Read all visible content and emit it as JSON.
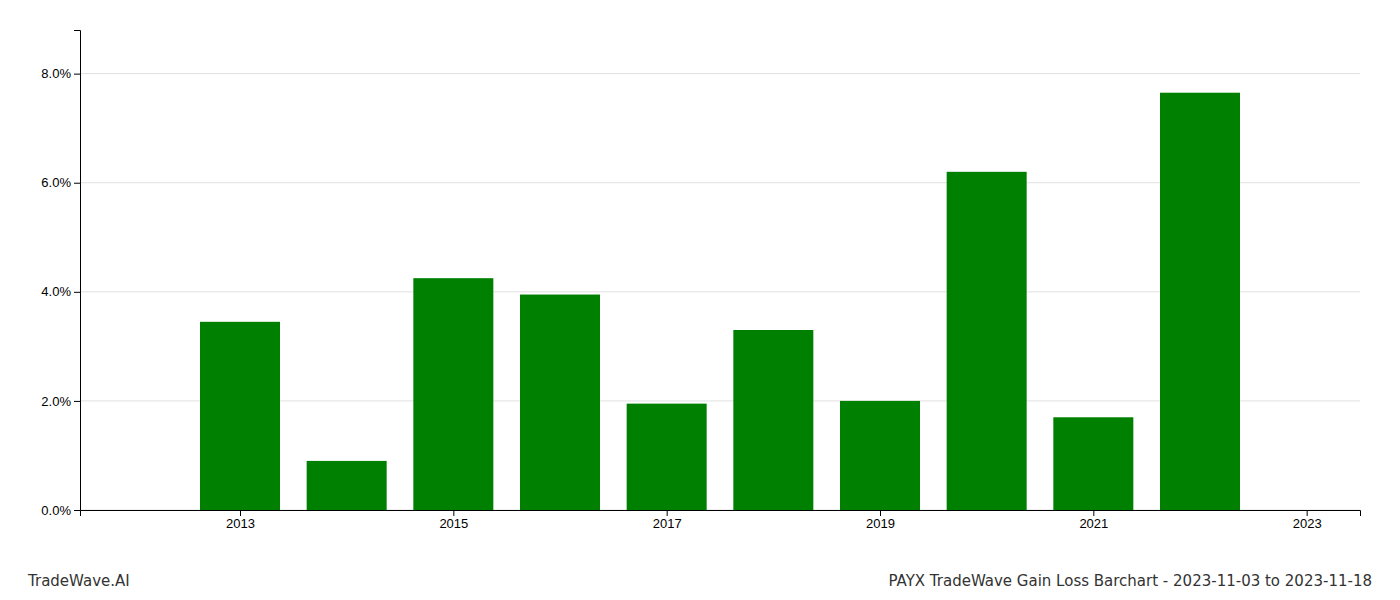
{
  "chart_data": {
    "type": "bar",
    "x": [
      2013,
      2014,
      2015,
      2016,
      2017,
      2018,
      2019,
      2020,
      2021,
      2022
    ],
    "values": [
      0.0345,
      0.009,
      0.0425,
      0.0395,
      0.0195,
      0.033,
      0.02,
      0.062,
      0.017,
      0.0765
    ],
    "color": "#008000",
    "xlim": [
      2011.5,
      2023.5
    ],
    "xticks": [
      2013,
      2015,
      2017,
      2019,
      2021,
      2023
    ],
    "ylim": [
      0,
      0.088
    ],
    "yticks": [
      {
        "value": 0.0,
        "label": "0.0%"
      },
      {
        "value": 0.02,
        "label": "2.0%"
      },
      {
        "value": 0.04,
        "label": "4.0%"
      },
      {
        "value": 0.06,
        "label": "6.0%"
      },
      {
        "value": 0.08,
        "label": "8.0%"
      }
    ],
    "grid": true,
    "annotations": [
      "TradeWave.AI",
      "PAYX TradeWave Gain Loss Barchart - 2023-11-03 to 2023-11-18"
    ]
  }
}
